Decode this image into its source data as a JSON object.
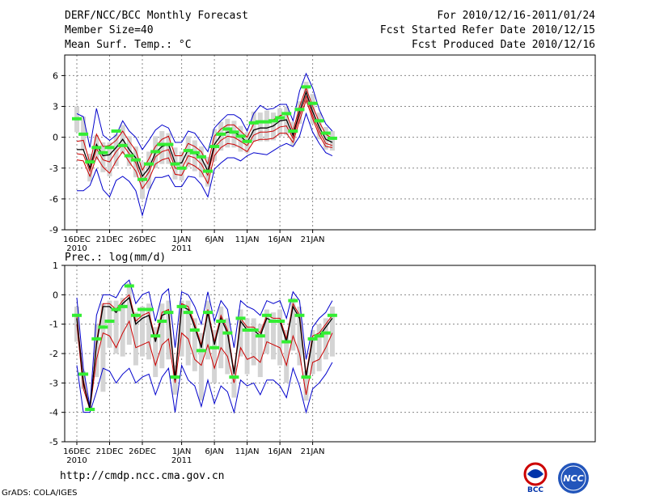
{
  "header": {
    "title": "DERF/NCC/BCC Monthly Forecast",
    "member_size": "Member Size=40",
    "variable_temp": "Mean Surf. Temp.: °C",
    "period": "For 2010/12/16-2011/01/24",
    "start_date": "Fcst Started Refer Date 2010/12/15",
    "produced_date": "Fcst Produced Date 2010/12/16"
  },
  "footer": {
    "url": "http://cmdp.ncc.cma.gov.cn",
    "grads": "GrADS: COLA/IGES",
    "logo_left_text": "BCC",
    "logo_right_text": "NCC"
  },
  "colors": {
    "ensemble_mean": "#000000",
    "median": "#cc0000",
    "envelope": "#0000cc",
    "box": "#d4d4d4",
    "obs": "#33ee33",
    "grid": "#888888"
  },
  "chart_data": [
    {
      "type": "line",
      "title": "Mean Surf. Temp.: °C",
      "xlabel": "",
      "ylabel": "°C",
      "ylim": [
        -9,
        8
      ],
      "yticks": [
        -9,
        -6,
        -3,
        0,
        3,
        6
      ],
      "x_tick_labels": [
        {
          "day": 0,
          "label": "16DEC",
          "sub": "2010"
        },
        {
          "day": 5,
          "label": "21DEC",
          "sub": ""
        },
        {
          "day": 10,
          "label": "26DEC",
          "sub": ""
        },
        {
          "day": 16,
          "label": "1JAN",
          "sub": "2011"
        },
        {
          "day": 21,
          "label": "6JAN",
          "sub": ""
        },
        {
          "day": 26,
          "label": "11JAN",
          "sub": ""
        },
        {
          "day": 31,
          "label": "16JAN",
          "sub": ""
        },
        {
          "day": 36,
          "label": "21JAN",
          "sub": ""
        }
      ],
      "series": [
        {
          "name": "ensemble mean",
          "values": [
            -1.2,
            -1.2,
            -3.0,
            -0.7,
            -1.8,
            -1.7,
            -1.0,
            -0.2,
            -1.2,
            -2.0,
            -3.8,
            -3.0,
            -1.5,
            -0.9,
            -0.7,
            -2.5,
            -2.5,
            -1.2,
            -1.5,
            -2.0,
            -3.3,
            -0.7,
            0.2,
            0.5,
            0.5,
            0.1,
            -0.5,
            0.7,
            0.9,
            0.9,
            1.1,
            1.6,
            1.7,
            0.2,
            2.5,
            4.4,
            2.5,
            1.0,
            -0.2,
            -0.5
          ]
        },
        {
          "name": "median",
          "values": [
            -1.6,
            -1.7,
            -3.3,
            -1.1,
            -2.2,
            -2.4,
            -1.4,
            -0.7,
            -1.6,
            -2.5,
            -4.3,
            -3.4,
            -1.9,
            -1.4,
            -1.2,
            -3.0,
            -3.1,
            -1.8,
            -2.0,
            -2.6,
            -3.7,
            -1.0,
            -0.3,
            0.1,
            0.0,
            -0.4,
            -0.8,
            0.2,
            0.5,
            0.5,
            0.6,
            1.0,
            1.1,
            -0.1,
            2.1,
            4.0,
            2.1,
            0.6,
            -0.6,
            -0.8
          ]
        },
        {
          "name": "upper member (red)",
          "values": [
            -0.4,
            -0.3,
            -2.5,
            0.3,
            -0.9,
            -0.8,
            -0.3,
            0.6,
            -0.4,
            -1.3,
            -3.2,
            -2.1,
            -0.9,
            -0.2,
            0.1,
            -1.8,
            -1.8,
            -0.6,
            -0.9,
            -1.4,
            -2.6,
            0.1,
            0.8,
            1.2,
            1.2,
            0.6,
            0.0,
            1.3,
            1.6,
            1.5,
            1.7,
            2.1,
            2.3,
            0.6,
            3.0,
            4.8,
            3.0,
            1.5,
            0.3,
            -0.1
          ]
        },
        {
          "name": "lower member (red)",
          "values": [
            -2.2,
            -2.3,
            -3.8,
            -1.9,
            -2.9,
            -3.5,
            -2.3,
            -1.4,
            -2.4,
            -3.3,
            -5.0,
            -4.1,
            -2.6,
            -2.2,
            -2.0,
            -3.6,
            -3.7,
            -2.5,
            -2.8,
            -3.3,
            -4.5,
            -1.8,
            -1.0,
            -0.6,
            -0.7,
            -1.0,
            -1.4,
            -0.4,
            -0.2,
            -0.2,
            -0.1,
            0.4,
            0.4,
            -0.5,
            1.6,
            3.6,
            1.8,
            0.2,
            -0.9,
            -1.0
          ]
        },
        {
          "name": "envelope max (blue)",
          "values": [
            2.3,
            2.0,
            -1.0,
            2.8,
            0.2,
            -0.3,
            0.2,
            1.6,
            0.6,
            0.0,
            -1.2,
            -0.3,
            0.7,
            1.2,
            0.9,
            -0.5,
            -0.5,
            0.6,
            0.4,
            -0.5,
            -1.4,
            0.9,
            1.6,
            2.2,
            2.2,
            1.8,
            0.6,
            2.3,
            3.1,
            2.7,
            2.8,
            3.2,
            3.2,
            1.6,
            4.5,
            6.2,
            4.8,
            2.7,
            1.3,
            0.6
          ]
        },
        {
          "name": "envelope min (blue)",
          "values": [
            -5.2,
            -5.2,
            -4.7,
            -3.1,
            -5.1,
            -5.8,
            -4.2,
            -3.8,
            -4.3,
            -5.2,
            -7.6,
            -5.2,
            -3.9,
            -3.9,
            -3.7,
            -4.8,
            -4.8,
            -3.8,
            -3.9,
            -4.6,
            -5.8,
            -3.1,
            -2.5,
            -2.0,
            -2.0,
            -2.3,
            -1.8,
            -1.5,
            -1.6,
            -1.7,
            -1.3,
            -0.9,
            -0.6,
            -0.9,
            0.1,
            2.3,
            0.5,
            -0.6,
            -1.5,
            -1.8
          ]
        },
        {
          "name": "observation (green)",
          "values": [
            1.8,
            0.3,
            -2.4,
            -1.0,
            -1.5,
            -1.0,
            0.6,
            -0.8,
            -1.8,
            -2.2,
            -4.1,
            -2.6,
            -1.4,
            -0.7,
            -0.7,
            -2.6,
            -3.0,
            -1.3,
            -1.5,
            -1.9,
            -3.3,
            -0.9,
            0.3,
            0.8,
            0.5,
            0.1,
            -0.4,
            1.4,
            1.5,
            1.5,
            1.6,
            1.9,
            2.3,
            0.6,
            2.7,
            4.9,
            3.3,
            1.6,
            0.4,
            -0.1
          ]
        },
        {
          "name": "box top (grey)",
          "values": [
            3.0,
            2.0,
            -1.6,
            0.2,
            -0.5,
            -0.5,
            0.3,
            1.2,
            0.1,
            -0.9,
            -2.4,
            -1.4,
            0.1,
            0.6,
            0.4,
            -1.0,
            -1.4,
            0.1,
            -0.3,
            -0.9,
            -1.9,
            0.8,
            1.5,
            1.8,
            1.6,
            1.1,
            0.5,
            2.5,
            2.4,
            2.6,
            2.4,
            2.8,
            3.0,
            1.5,
            3.5,
            5.4,
            4.2,
            2.4,
            1.0,
            0.6
          ]
        },
        {
          "name": "box bottom (grey)",
          "values": [
            0.5,
            -1.2,
            -4.3,
            -2.2,
            -3.4,
            -3.8,
            -2.8,
            -1.6,
            -2.8,
            -3.9,
            -6.0,
            -5.0,
            -3.0,
            -2.6,
            -2.6,
            -4.1,
            -4.2,
            -2.9,
            -3.3,
            -3.9,
            -4.8,
            -2.3,
            -1.3,
            -1.0,
            -1.0,
            -1.4,
            -1.5,
            -0.4,
            -0.4,
            -0.4,
            -0.3,
            0.1,
            0.2,
            -0.8,
            1.3,
            3.3,
            1.3,
            -0.2,
            -1.2,
            -1.3
          ]
        }
      ]
    },
    {
      "type": "line",
      "title": "Prec.: log(mm/d)",
      "xlabel": "",
      "ylabel": "log(mm/d)",
      "ylim": [
        -5,
        1
      ],
      "yticks": [
        -5,
        -4,
        -3,
        -2,
        -1,
        0,
        1
      ],
      "x_tick_labels": [
        {
          "day": 0,
          "label": "16DEC",
          "sub": "2010"
        },
        {
          "day": 5,
          "label": "21DEC",
          "sub": ""
        },
        {
          "day": 10,
          "label": "26DEC",
          "sub": ""
        },
        {
          "day": 16,
          "label": "1JAN",
          "sub": "2011"
        },
        {
          "day": 21,
          "label": "6JAN",
          "sub": ""
        },
        {
          "day": 26,
          "label": "11JAN",
          "sub": ""
        },
        {
          "day": 31,
          "label": "16JAN",
          "sub": ""
        },
        {
          "day": 36,
          "label": "21JAN",
          "sub": ""
        }
      ],
      "series": [
        {
          "name": "ensemble mean",
          "values": [
            -0.8,
            -3.0,
            -3.9,
            -1.7,
            -0.4,
            -0.4,
            -0.6,
            -0.3,
            -0.1,
            -1.0,
            -0.8,
            -0.7,
            -1.6,
            -0.7,
            -0.6,
            -2.9,
            -0.4,
            -0.5,
            -1.1,
            -1.8,
            -0.6,
            -1.7,
            -0.8,
            -1.3,
            -2.7,
            -0.9,
            -1.2,
            -1.2,
            -1.4,
            -0.8,
            -0.9,
            -0.9,
            -1.6,
            -0.4,
            -0.8,
            -2.8,
            -1.5,
            -1.4,
            -1.1,
            -0.8
          ]
        },
        {
          "name": "median",
          "values": [
            -1.0,
            -3.2,
            -3.9,
            -2.2,
            -1.3,
            -1.4,
            -1.8,
            -1.3,
            -0.9,
            -1.8,
            -1.7,
            -1.6,
            -2.4,
            -1.7,
            -1.5,
            -3.0,
            -1.3,
            -1.5,
            -2.2,
            -2.4,
            -1.7,
            -2.5,
            -1.8,
            -2.1,
            -3.0,
            -1.8,
            -2.2,
            -2.1,
            -2.3,
            -1.6,
            -1.7,
            -1.8,
            -2.4,
            -1.4,
            -2.0,
            -3.4,
            -2.3,
            -2.2,
            -1.8,
            -1.3
          ]
        },
        {
          "name": "upper member (red)",
          "values": [
            -0.7,
            -2.9,
            -3.9,
            -1.6,
            -0.3,
            -0.3,
            -0.5,
            -0.2,
            0.0,
            -0.9,
            -0.7,
            -0.6,
            -1.5,
            -0.6,
            -0.5,
            -2.8,
            -0.3,
            -0.4,
            -1.0,
            -1.7,
            -0.5,
            -1.6,
            -0.7,
            -1.2,
            -2.6,
            -0.8,
            -1.1,
            -1.1,
            -1.3,
            -0.7,
            -0.8,
            -0.8,
            -1.5,
            -0.3,
            -0.7,
            -2.7,
            -1.4,
            -1.3,
            -1.0,
            -0.7
          ]
        },
        {
          "name": "envelope max (blue)",
          "values": [
            -0.1,
            -2.5,
            -3.8,
            -0.7,
            0.0,
            0.0,
            -0.1,
            0.3,
            0.5,
            -0.3,
            0.0,
            0.1,
            -0.9,
            0.0,
            0.2,
            -1.8,
            0.1,
            0.0,
            -0.4,
            -1.0,
            0.1,
            -0.9,
            -0.2,
            -0.5,
            -1.8,
            -0.2,
            -0.4,
            -0.5,
            -0.7,
            -0.2,
            -0.3,
            -0.2,
            -0.8,
            0.1,
            -0.2,
            -2.2,
            -1.1,
            -0.8,
            -0.6,
            -0.2
          ]
        },
        {
          "name": "envelope min (blue)",
          "values": [
            -2.4,
            -4.0,
            -4.0,
            -3.3,
            -2.5,
            -2.6,
            -3.0,
            -2.7,
            -2.5,
            -3.0,
            -2.8,
            -2.7,
            -3.4,
            -2.8,
            -2.5,
            -4.0,
            -2.4,
            -2.9,
            -3.1,
            -3.8,
            -2.9,
            -3.7,
            -3.1,
            -3.3,
            -4.0,
            -2.9,
            -3.1,
            -3.0,
            -3.4,
            -2.9,
            -2.9,
            -3.1,
            -3.5,
            -2.5,
            -3.1,
            -4.0,
            -3.2,
            -3.0,
            -2.7,
            -2.3
          ]
        },
        {
          "name": "observation (green)",
          "values": [
            -0.7,
            -2.7,
            -3.9,
            -1.5,
            -1.1,
            -0.9,
            -0.5,
            -0.4,
            0.3,
            -0.7,
            -0.5,
            -0.5,
            -1.4,
            -0.9,
            -0.6,
            -2.8,
            -0.4,
            -0.6,
            -1.2,
            -1.9,
            -0.6,
            -1.8,
            -0.9,
            -1.3,
            -2.8,
            -0.8,
            -1.2,
            -1.2,
            -1.4,
            -0.7,
            -0.9,
            -0.9,
            -1.6,
            -0.2,
            -0.7,
            -2.8,
            -1.5,
            -1.4,
            -1.3,
            -0.7
          ]
        },
        {
          "name": "box top (grey)",
          "values": [
            -0.4,
            -2.6,
            -3.8,
            -1.0,
            -0.3,
            -0.2,
            -0.2,
            -0.1,
            0.4,
            -0.6,
            -0.4,
            -0.3,
            -1.1,
            -0.3,
            -0.2,
            -2.4,
            -0.2,
            -0.2,
            -0.8,
            -1.3,
            -0.2,
            -1.2,
            -0.4,
            -0.8,
            -2.4,
            -0.5,
            -0.8,
            -0.8,
            -1.0,
            -0.5,
            -0.6,
            -0.5,
            -1.2,
            -0.1,
            -0.4,
            -2.6,
            -1.2,
            -1.0,
            -0.8,
            -0.4
          ]
        },
        {
          "name": "box bottom (grey)",
          "values": [
            -1.6,
            -3.2,
            -3.9,
            -2.8,
            -3.3,
            -1.8,
            -2.0,
            -2.1,
            -1.7,
            -2.4,
            -2.1,
            -2.2,
            -2.8,
            -2.5,
            -2.2,
            -3.4,
            -2.1,
            -2.4,
            -2.6,
            -3.6,
            -2.2,
            -3.0,
            -2.5,
            -2.7,
            -3.5,
            -2.1,
            -2.7,
            -2.4,
            -2.8,
            -2.0,
            -2.2,
            -2.4,
            -3.0,
            -1.9,
            -2.4,
            -3.6,
            -2.7,
            -2.6,
            -2.2,
            -2.1
          ]
        }
      ]
    }
  ]
}
